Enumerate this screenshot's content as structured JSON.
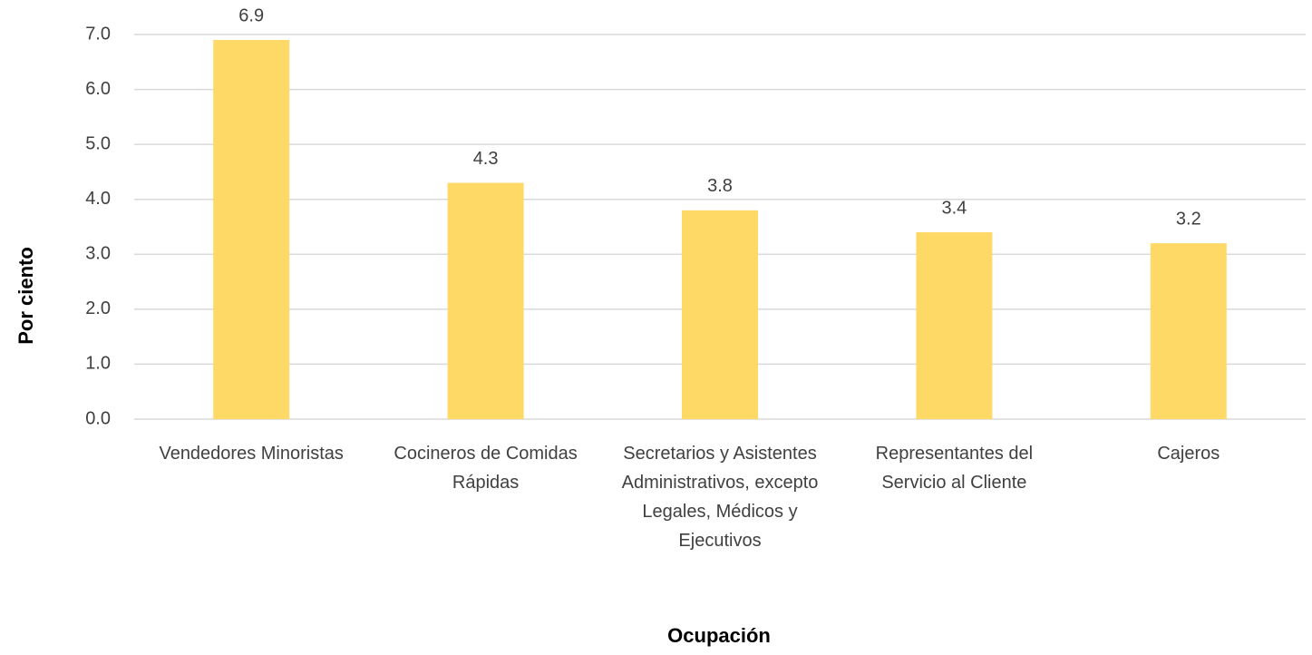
{
  "chart_data": {
    "type": "bar",
    "categories": [
      "Vendedores Minoristas",
      "Cocineros de Comidas Rápidas",
      "Secretarios y Asistentes Administrativos, excepto Legales, Médicos y Ejecutivos",
      "Representantes del Servicio al Cliente",
      "Cajeros"
    ],
    "values": [
      6.9,
      4.3,
      3.8,
      3.4,
      3.2
    ],
    "value_labels": [
      "6.9",
      "4.3",
      "3.8",
      "3.4",
      "3.2"
    ],
    "color": "#ffd966",
    "x_label": "Ocupación",
    "y_label": "Por ciento",
    "ylim": [
      0,
      7
    ],
    "yticks": [
      {
        "value": 0,
        "label": "0.0"
      },
      {
        "value": 1,
        "label": "1.0"
      },
      {
        "value": 2,
        "label": "2.0"
      },
      {
        "value": 3,
        "label": "3.0"
      },
      {
        "value": 4,
        "label": "4.0"
      },
      {
        "value": 5,
        "label": "5.0"
      },
      {
        "value": 6,
        "label": "6.0"
      },
      {
        "value": 7,
        "label": "7.0"
      }
    ],
    "grid": true
  }
}
